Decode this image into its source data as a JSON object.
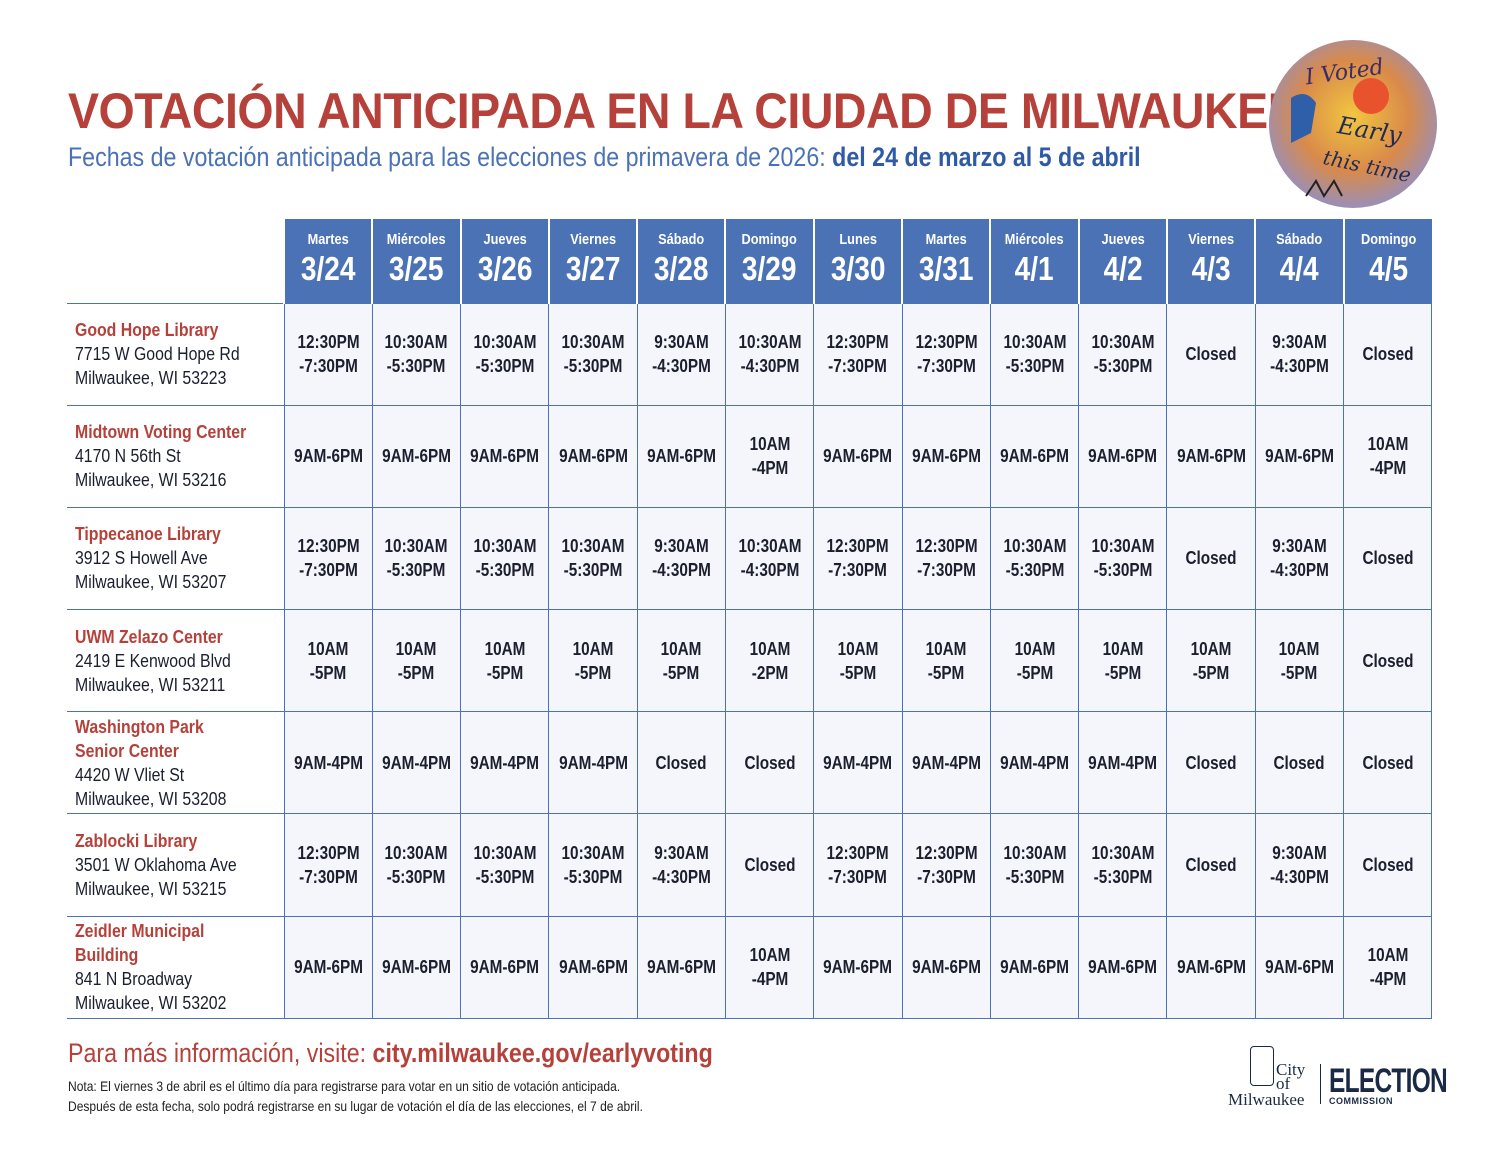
{
  "header": {
    "title": "VOTACIÓN ANTICIPADA EN LA CIUDAD DE MILWAUKEE",
    "subtitle_prefix": "Fechas de votación anticipada para las elecciones de primavera de 2026: ",
    "subtitle_range": "del 24 de marzo al 5 de abril",
    "badge_text": [
      "I Voted",
      "Early",
      "this time"
    ]
  },
  "days": [
    {
      "name": "Martes",
      "date": "3/24"
    },
    {
      "name": "Miércoles",
      "date": "3/25"
    },
    {
      "name": "Jueves",
      "date": "3/26"
    },
    {
      "name": "Viernes",
      "date": "3/27"
    },
    {
      "name": "Sábado",
      "date": "3/28"
    },
    {
      "name": "Domingo",
      "date": "3/29"
    },
    {
      "name": "Lunes",
      "date": "3/30"
    },
    {
      "name": "Martes",
      "date": "3/31"
    },
    {
      "name": "Miércoles",
      "date": "4/1"
    },
    {
      "name": "Jueves",
      "date": "4/2"
    },
    {
      "name": "Viernes",
      "date": "4/3"
    },
    {
      "name": "Sábado",
      "date": "4/4"
    },
    {
      "name": "Domingo",
      "date": "4/5"
    }
  ],
  "locations": [
    {
      "name": "Good Hope Library",
      "address": "7715 W Good Hope Rd",
      "city": "Milwaukee, WI 53223",
      "hours": [
        "12:30PM\n-7:30PM",
        "10:30AM\n-5:30PM",
        "10:30AM\n-5:30PM",
        "10:30AM\n-5:30PM",
        "9:30AM\n-4:30PM",
        "10:30AM\n-4:30PM",
        "12:30PM\n-7:30PM",
        "12:30PM\n-7:30PM",
        "10:30AM\n-5:30PM",
        "10:30AM\n-5:30PM",
        "Closed",
        "9:30AM\n-4:30PM",
        "Closed"
      ]
    },
    {
      "name": "Midtown Voting Center",
      "address": "4170 N 56th St",
      "city": "Milwaukee, WI 53216",
      "hours": [
        "9AM-6PM",
        "9AM-6PM",
        "9AM-6PM",
        "9AM-6PM",
        "9AM-6PM",
        "10AM\n-4PM",
        "9AM-6PM",
        "9AM-6PM",
        "9AM-6PM",
        "9AM-6PM",
        "9AM-6PM",
        "9AM-6PM",
        "10AM\n-4PM"
      ]
    },
    {
      "name": "Tippecanoe Library",
      "address": "3912 S Howell Ave",
      "city": "Milwaukee, WI 53207",
      "hours": [
        "12:30PM\n-7:30PM",
        "10:30AM\n-5:30PM",
        "10:30AM\n-5:30PM",
        "10:30AM\n-5:30PM",
        "9:30AM\n-4:30PM",
        "10:30AM\n-4:30PM",
        "12:30PM\n-7:30PM",
        "12:30PM\n-7:30PM",
        "10:30AM\n-5:30PM",
        "10:30AM\n-5:30PM",
        "Closed",
        "9:30AM\n-4:30PM",
        "Closed"
      ]
    },
    {
      "name": "UWM Zelazo Center",
      "address": "2419 E Kenwood Blvd",
      "city": "Milwaukee, WI 53211",
      "hours": [
        "10AM\n-5PM",
        "10AM\n-5PM",
        "10AM\n-5PM",
        "10AM\n-5PM",
        "10AM\n-5PM",
        "10AM\n-2PM",
        "10AM\n-5PM",
        "10AM\n-5PM",
        "10AM\n-5PM",
        "10AM\n-5PM",
        "10AM\n-5PM",
        "10AM\n-5PM",
        "Closed"
      ]
    },
    {
      "name": "Washington Park\nSenior Center",
      "address": "4420 W Vliet St",
      "city": "Milwaukee, WI 53208",
      "hours": [
        "9AM-4PM",
        "9AM-4PM",
        "9AM-4PM",
        "9AM-4PM",
        "Closed",
        "Closed",
        "9AM-4PM",
        "9AM-4PM",
        "9AM-4PM",
        "9AM-4PM",
        "Closed",
        "Closed",
        "Closed"
      ]
    },
    {
      "name": "Zablocki Library",
      "address": "3501 W Oklahoma Ave",
      "city": "Milwaukee, WI 53215",
      "hours": [
        "12:30PM\n-7:30PM",
        "10:30AM\n-5:30PM",
        "10:30AM\n-5:30PM",
        "10:30AM\n-5:30PM",
        "9:30AM\n-4:30PM",
        "Closed",
        "12:30PM\n-7:30PM",
        "12:30PM\n-7:30PM",
        "10:30AM\n-5:30PM",
        "10:30AM\n-5:30PM",
        "Closed",
        "9:30AM\n-4:30PM",
        "Closed"
      ]
    },
    {
      "name": "Zeidler Municipal Building",
      "address": "841 N Broadway",
      "city": "Milwaukee, WI 53202",
      "hours": [
        "9AM-6PM",
        "9AM-6PM",
        "9AM-6PM",
        "9AM-6PM",
        "9AM-6PM",
        "10AM\n-4PM",
        "9AM-6PM",
        "9AM-6PM",
        "9AM-6PM",
        "9AM-6PM",
        "9AM-6PM",
        "9AM-6PM",
        "10AM\n-4PM"
      ]
    }
  ],
  "footer": {
    "more_info_prefix": "Para más información, visite: ",
    "more_info_link": "city.milwaukee.gov/earlyvoting",
    "note_line1": "Nota: El viernes 3 de abril es el último día para registrarse para votar en un sitio de votación anticipada.",
    "note_line2": "Después de esta fecha, solo podrá registrarse en su lugar de votación el día de las elecciones, el 7 de abril.",
    "logo_city": [
      "City",
      "of",
      "Milwaukee"
    ],
    "logo_election": "ELECTION",
    "logo_commission": "COMMISSION"
  },
  "colors": {
    "title_red": "#b5413a",
    "header_blue": "#4a72b5",
    "cell_bg": "#f4f6fb",
    "logo_navy": "#1b2a44"
  }
}
